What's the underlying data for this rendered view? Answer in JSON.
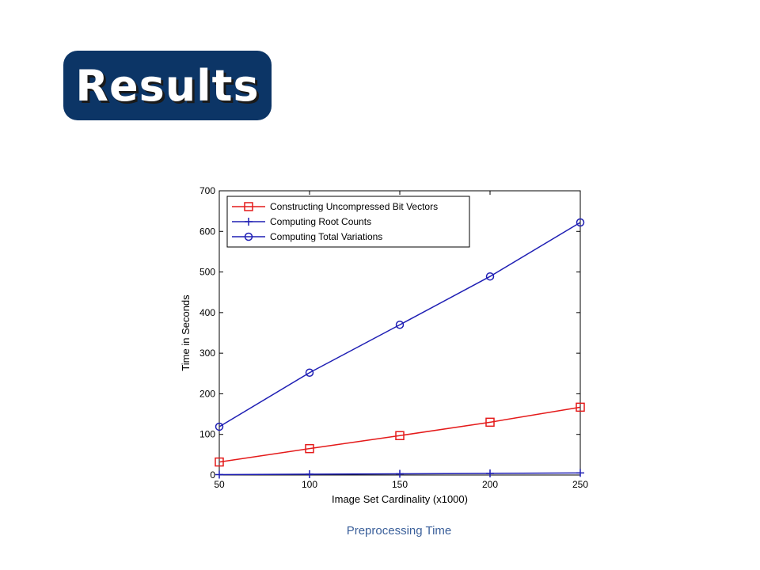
{
  "slide": {
    "title": "Results",
    "caption": "Preprocessing Time"
  },
  "colors": {
    "title_bg": "#0c3566",
    "series_red": "#e41a1a",
    "series_blue": "#1f1fb4"
  },
  "chart_data": {
    "type": "line",
    "title": "",
    "xlabel": "Image Set Cardinality (x1000)",
    "ylabel": "Time in Seconds",
    "x": [
      50,
      100,
      150,
      200,
      250
    ],
    "xlim": [
      50,
      250
    ],
    "ylim": [
      0,
      700
    ],
    "xticks": [
      50,
      100,
      150,
      200,
      250
    ],
    "yticks": [
      0,
      100,
      200,
      300,
      400,
      500,
      600,
      700
    ],
    "grid": false,
    "legend_position": "top-left",
    "series": [
      {
        "name": "Constructing Uncompressed Bit Vectors",
        "marker": "square",
        "color": "#e41a1a",
        "values": [
          32,
          65,
          97,
          130,
          167
        ]
      },
      {
        "name": "Computing Root Counts",
        "marker": "plus",
        "color": "#1f1fb4",
        "values": [
          1,
          2,
          3,
          4,
          5
        ]
      },
      {
        "name": "Computing Total Variations",
        "marker": "circle",
        "color": "#1f1fb4",
        "values": [
          119,
          252,
          370,
          489,
          622
        ]
      }
    ]
  }
}
